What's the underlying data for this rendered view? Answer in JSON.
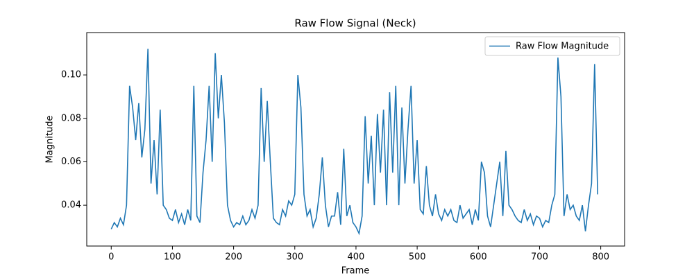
{
  "chart_data": {
    "type": "line",
    "title": "Raw Flow Signal (Neck)",
    "x_label": "Frame",
    "y_label": "Magnitude",
    "x": [
      0,
      5,
      10,
      15,
      20,
      25,
      30,
      35,
      40,
      45,
      50,
      55,
      60,
      65,
      70,
      75,
      80,
      85,
      90,
      95,
      100,
      105,
      110,
      115,
      120,
      125,
      130,
      135,
      140,
      145,
      150,
      155,
      160,
      165,
      170,
      175,
      180,
      185,
      190,
      195,
      200,
      205,
      210,
      215,
      220,
      225,
      230,
      235,
      240,
      245,
      250,
      255,
      260,
      265,
      270,
      275,
      280,
      285,
      290,
      295,
      300,
      305,
      310,
      315,
      320,
      325,
      330,
      335,
      340,
      345,
      350,
      355,
      360,
      365,
      370,
      375,
      380,
      385,
      390,
      395,
      400,
      405,
      410,
      415,
      420,
      425,
      430,
      435,
      440,
      445,
      450,
      455,
      460,
      465,
      470,
      475,
      480,
      485,
      490,
      495,
      500,
      505,
      510,
      515,
      520,
      525,
      530,
      535,
      540,
      545,
      550,
      555,
      560,
      565,
      570,
      575,
      580,
      585,
      590,
      595,
      600,
      605,
      610,
      615,
      620,
      625,
      630,
      635,
      640,
      645,
      650,
      655,
      660,
      665,
      670,
      675,
      680,
      685,
      690,
      695,
      700,
      705,
      710,
      715,
      720,
      725,
      730,
      735,
      740,
      745,
      750,
      755,
      760,
      765,
      770,
      775,
      780,
      785,
      790,
      795
    ],
    "series": [
      {
        "name": "Raw Flow Magnitude",
        "color": "#1f77b4",
        "values": [
          0.029,
          0.032,
          0.03,
          0.034,
          0.031,
          0.04,
          0.095,
          0.085,
          0.07,
          0.087,
          0.062,
          0.075,
          0.112,
          0.05,
          0.07,
          0.045,
          0.084,
          0.04,
          0.038,
          0.034,
          0.033,
          0.038,
          0.032,
          0.036,
          0.031,
          0.038,
          0.033,
          0.095,
          0.035,
          0.032,
          0.055,
          0.07,
          0.095,
          0.06,
          0.11,
          0.08,
          0.1,
          0.078,
          0.04,
          0.033,
          0.03,
          0.032,
          0.031,
          0.035,
          0.031,
          0.033,
          0.038,
          0.034,
          0.04,
          0.094,
          0.06,
          0.088,
          0.06,
          0.034,
          0.032,
          0.031,
          0.038,
          0.035,
          0.042,
          0.04,
          0.045,
          0.1,
          0.085,
          0.045,
          0.035,
          0.038,
          0.03,
          0.034,
          0.045,
          0.062,
          0.04,
          0.03,
          0.035,
          0.035,
          0.046,
          0.031,
          0.066,
          0.035,
          0.04,
          0.032,
          0.03,
          0.027,
          0.035,
          0.081,
          0.05,
          0.072,
          0.04,
          0.082,
          0.055,
          0.084,
          0.04,
          0.092,
          0.055,
          0.095,
          0.04,
          0.085,
          0.05,
          0.075,
          0.095,
          0.05,
          0.07,
          0.038,
          0.036,
          0.058,
          0.04,
          0.035,
          0.045,
          0.036,
          0.033,
          0.038,
          0.035,
          0.038,
          0.033,
          0.032,
          0.04,
          0.034,
          0.036,
          0.038,
          0.031,
          0.038,
          0.033,
          0.06,
          0.055,
          0.035,
          0.03,
          0.04,
          0.05,
          0.06,
          0.035,
          0.065,
          0.04,
          0.038,
          0.035,
          0.033,
          0.032,
          0.038,
          0.033,
          0.036,
          0.031,
          0.035,
          0.034,
          0.03,
          0.033,
          0.032,
          0.04,
          0.045,
          0.108,
          0.09,
          0.035,
          0.045,
          0.038,
          0.04,
          0.035,
          0.033,
          0.04,
          0.028,
          0.04,
          0.05,
          0.105,
          0.045
        ]
      }
    ],
    "xlim": [
      -40,
      839
    ],
    "ylim": [
      0.0212,
      0.1195
    ],
    "xticks": [
      0,
      100,
      200,
      300,
      400,
      500,
      600,
      700,
      800
    ],
    "yticks": [
      0.04,
      0.06,
      0.08,
      {
        "value": 0.1,
        "label": "0.10"
      }
    ],
    "legend": "upper right"
  }
}
